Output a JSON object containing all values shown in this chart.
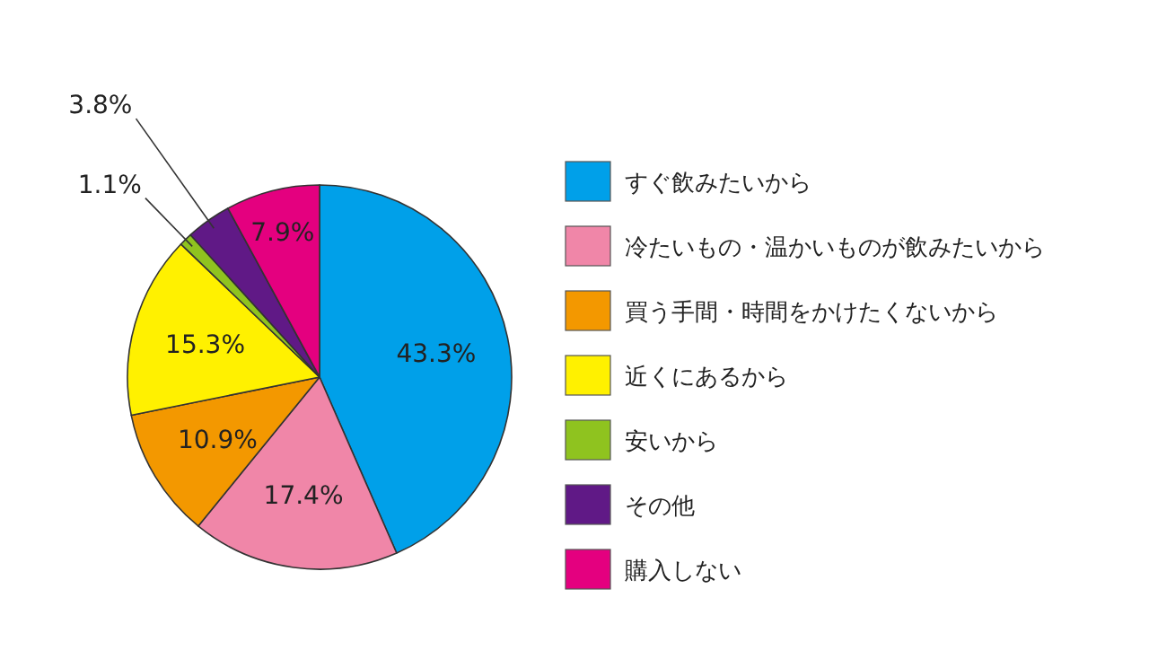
{
  "chart_data": {
    "type": "pie",
    "categories": [
      "すぐ飲みたいから",
      "冷たいもの・温かいものが飲みたいから",
      "買う手間・時間をかけたくないから",
      "近くにあるから",
      "安いから",
      "その他",
      "購入しない"
    ],
    "values": [
      43.3,
      17.4,
      10.9,
      15.3,
      1.1,
      3.8,
      7.9
    ],
    "colors": [
      "#00a0e9",
      "#f086a8",
      "#f39800",
      "#fff100",
      "#8fc31f",
      "#601986",
      "#e4007f"
    ],
    "value_labels": [
      "43.3%",
      "17.4%",
      "10.9%",
      "15.3%",
      "1.1%",
      "3.8%",
      "7.9%"
    ],
    "legend": "right"
  }
}
